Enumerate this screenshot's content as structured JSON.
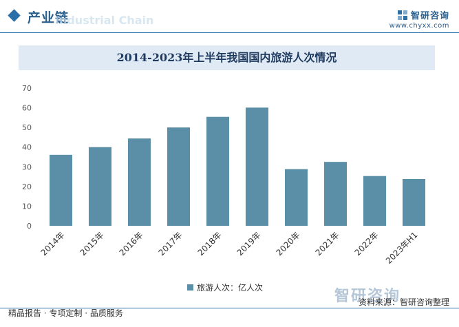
{
  "header": {
    "section_title": "产业链",
    "ghost_text": "Industrial Chain",
    "brand_name": "智研咨询",
    "brand_url": "www.chyxx.com",
    "accent_color": "#2b6fa8"
  },
  "chart_data": {
    "type": "bar",
    "title": "2014-2023年上半年我国国内旅游人次情况",
    "categories": [
      "2014年",
      "2015年",
      "2016年",
      "2017年",
      "2018年",
      "2019年",
      "2020年",
      "2021年",
      "2022年",
      "2023年H1"
    ],
    "series": [
      {
        "name": "旅游人次：亿人次",
        "values": [
          36.1,
          40.0,
          44.4,
          50.0,
          55.4,
          60.1,
          28.8,
          32.5,
          25.3,
          23.8
        ],
        "color": "#5b8fa8"
      }
    ],
    "yticks": [
      0,
      10,
      20,
      30,
      40,
      50,
      60,
      70
    ],
    "ylim": [
      0,
      70
    ],
    "grid": false,
    "legend_position": "bottom"
  },
  "footer": {
    "left_text": "精品报告 · 专项定制 · 品质服务",
    "right_text": "资料来源：智研咨询整理",
    "watermark": "智研咨询"
  }
}
